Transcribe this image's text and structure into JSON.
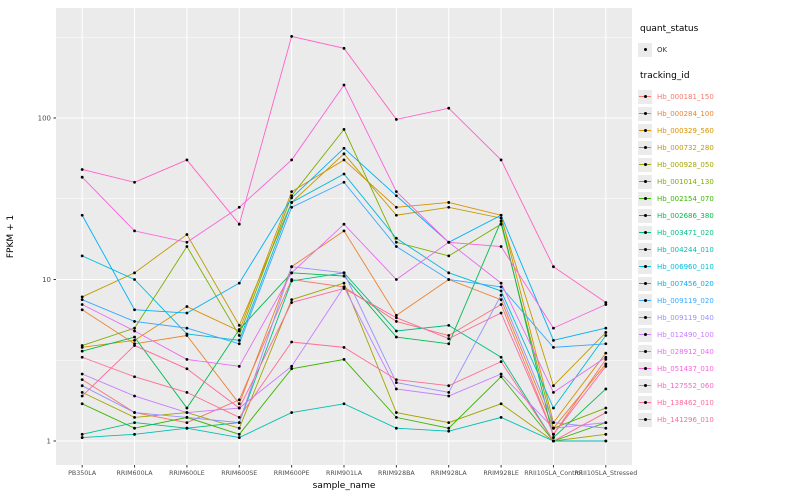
{
  "chart_data": {
    "type": "line",
    "title": "",
    "xlabel": "sample_name",
    "ylabel": "FPKM + 1",
    "y_scale": "log10",
    "y_ticks": [
      1,
      10,
      100
    ],
    "y_tick_labels": [
      "1",
      "10",
      "100"
    ],
    "ylim": [
      0.85,
      420
    ],
    "grid": true,
    "panel_bg": "#EBEBEB",
    "grid_color": "#FFFFFF",
    "point_color": "#000000",
    "categories": [
      "PB350LA",
      "RRIM600LA",
      "RRIM600LE",
      "RRIM600SE",
      "RRIM600PE",
      "RRIM901LA",
      "RRIM928BA",
      "RRIM928LA",
      "RRIM928LE",
      "RRII105LA_Control",
      "RRII105LA_Stressed"
    ],
    "legend": {
      "position": "right",
      "quant_status_title": "quant_status",
      "quant_status_items": [
        "OK"
      ],
      "tracking_id_title": "tracking_id"
    },
    "series": [
      {
        "name": "Hb_000181_150",
        "color": "#F8766D",
        "values": [
          2.4,
          1.5,
          1.3,
          1.8,
          10,
          9,
          5.5,
          4.5,
          7,
          1.1,
          3.2
        ]
      },
      {
        "name": "Hb_000284_100",
        "color": "#EA8331",
        "values": [
          6.5,
          4.0,
          4.5,
          1.7,
          12,
          20,
          6,
          10,
          7.5,
          1.2,
          3.0
        ]
      },
      {
        "name": "Hb_000329_560",
        "color": "#D89000",
        "values": [
          3.8,
          4.2,
          6.8,
          4.8,
          35,
          55,
          28,
          30,
          25,
          1.3,
          3.5
        ]
      },
      {
        "name": "Hb_000732_280",
        "color": "#C09B00",
        "values": [
          7.8,
          11,
          19,
          5.2,
          30,
          60,
          25,
          28,
          24,
          2.2,
          4.7
        ]
      },
      {
        "name": "Hb_000928_050",
        "color": "#A3A500",
        "values": [
          2.0,
          1.4,
          1.5,
          1.2,
          7.5,
          9.5,
          1.5,
          1.3,
          1.7,
          1.0,
          1.1
        ]
      },
      {
        "name": "Hb_001014_130",
        "color": "#7CAE00",
        "values": [
          3.9,
          5.0,
          16,
          4.5,
          33,
          85,
          17,
          14,
          22,
          1.2,
          1.6
        ]
      },
      {
        "name": "Hb_002154_070",
        "color": "#39B600",
        "values": [
          1.7,
          1.2,
          1.4,
          1.1,
          2.8,
          3.2,
          1.4,
          1.2,
          2.5,
          1.0,
          1.3
        ]
      },
      {
        "name": "Hb_002686_380",
        "color": "#00BB4E",
        "values": [
          3.6,
          4.4,
          1.6,
          4.9,
          11,
          10.5,
          4.4,
          4.0,
          23,
          1.05,
          2.1
        ]
      },
      {
        "name": "Hb_003471_020",
        "color": "#00C087",
        "values": [
          1.1,
          1.3,
          1.2,
          1.3,
          9.8,
          11,
          4.8,
          5.2,
          3.3,
          1.0,
          1.0
        ]
      },
      {
        "name": "Hb_004244_010",
        "color": "#00C0B4",
        "values": [
          1.05,
          1.1,
          1.2,
          1.05,
          1.5,
          1.7,
          1.2,
          1.15,
          1.4,
          1.0,
          1.0
        ]
      },
      {
        "name": "Hb_006960_010",
        "color": "#00BCD8",
        "values": [
          14,
          10,
          4.6,
          4.2,
          30,
          45,
          18,
          11,
          8.5,
          1.6,
          4.5
        ]
      },
      {
        "name": "Hb_007456_020",
        "color": "#00B0F6",
        "values": [
          25,
          6.5,
          6.2,
          9.5,
          32,
          65,
          33,
          17,
          25,
          4.2,
          5.0
        ]
      },
      {
        "name": "Hb_009119_020",
        "color": "#39A7FF",
        "values": [
          7.5,
          5.5,
          5.0,
          4.0,
          28,
          40,
          16,
          10,
          9,
          3.8,
          4.0
        ]
      },
      {
        "name": "Hb_009119_040",
        "color": "#9590FF",
        "values": [
          2.2,
          1.5,
          1.4,
          1.3,
          12,
          11,
          2.3,
          2.0,
          8,
          1.3,
          1.2
        ]
      },
      {
        "name": "Hb_012490_100",
        "color": "#C77CFF",
        "values": [
          2.6,
          1.9,
          1.5,
          1.6,
          2.9,
          9,
          2.1,
          1.9,
          2.6,
          1.2,
          1.3
        ]
      },
      {
        "name": "Hb_028912_040",
        "color": "#E76BF3",
        "values": [
          7.0,
          4.8,
          3.2,
          2.9,
          11,
          22,
          10,
          17,
          9.5,
          2.0,
          3.3
        ]
      },
      {
        "name": "Hb_051437_010",
        "color": "#FA62DB",
        "values": [
          43,
          20,
          17,
          28,
          55,
          160,
          35,
          17,
          16,
          5,
          7
        ]
      },
      {
        "name": "Hb_127552_060",
        "color": "#FF61C7",
        "values": [
          48,
          40,
          55,
          22,
          320,
          270,
          98,
          115,
          55,
          12,
          7.2
        ]
      },
      {
        "name": "Hb_138462_010",
        "color": "#FF689E",
        "values": [
          1.9,
          3.9,
          2.8,
          1.6,
          7.2,
          8.8,
          5.8,
          4.3,
          6.2,
          1.1,
          2.9
        ]
      },
      {
        "name": "Hb_141296_010",
        "color": "#FF6C91",
        "values": [
          3.3,
          2.5,
          2.0,
          1.4,
          4.1,
          3.8,
          2.4,
          2.2,
          3.1,
          1.0,
          1.5
        ]
      }
    ]
  }
}
